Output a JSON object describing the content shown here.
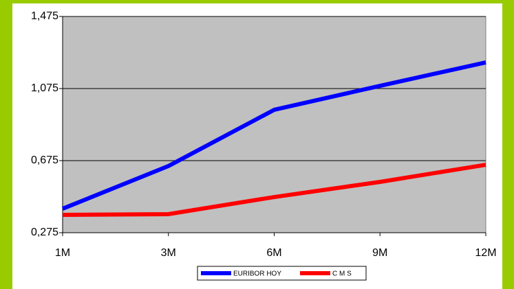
{
  "chart_data": {
    "type": "line",
    "categories": [
      "1M",
      "3M",
      "6M",
      "9M",
      "12M"
    ],
    "series": [
      {
        "name": "EURIBOR HOY",
        "color": "#0000ff",
        "values": [
          0.408,
          0.645,
          0.957,
          1.09,
          1.22
        ]
      },
      {
        "name": "C M S",
        "color": "#ff0000",
        "values": [
          0.374,
          0.378,
          0.473,
          0.557,
          0.652
        ]
      }
    ],
    "ylim": [
      0.275,
      1.475
    ],
    "yticks": [
      {
        "value": 0.275,
        "label": "0,275"
      },
      {
        "value": 0.675,
        "label": "0,675"
      },
      {
        "value": 1.075,
        "label": "1,075"
      },
      {
        "value": 1.475,
        "label": "1,475"
      }
    ],
    "grid": true,
    "legend": "bottom"
  }
}
